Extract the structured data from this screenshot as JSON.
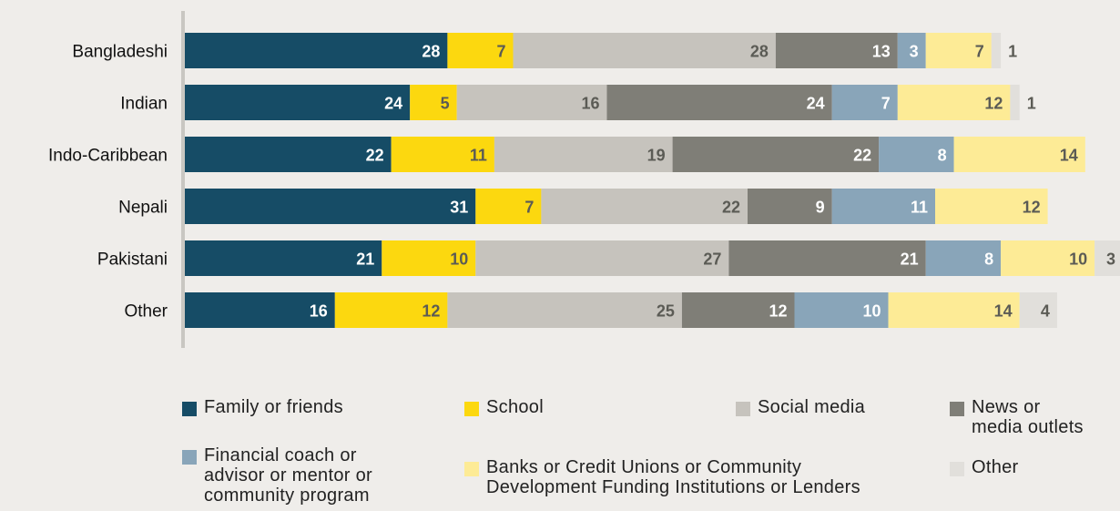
{
  "chart_data": {
    "type": "bar",
    "orientation": "horizontal",
    "stacked": true,
    "categories": [
      "Bangladeshi",
      "Indian",
      "Indo-Caribbean",
      "Nepali",
      "Pakistani",
      "Other"
    ],
    "series": [
      {
        "name": "Family or friends",
        "color": "#164c66",
        "label_color": "#ffffff",
        "values": [
          28,
          24,
          22,
          31,
          21,
          16
        ]
      },
      {
        "name": "School",
        "color": "#fcd80f",
        "label_color": "#5b5b55",
        "values": [
          7,
          5,
          11,
          7,
          10,
          12
        ]
      },
      {
        "name": "Social media",
        "color": "#c6c3bd",
        "label_color": "#5b5b55",
        "values": [
          28,
          16,
          19,
          22,
          27,
          25
        ]
      },
      {
        "name": "News or media outlets",
        "color": "#7f7e77",
        "label_color": "#ffffff",
        "values": [
          13,
          24,
          22,
          9,
          21,
          12
        ]
      },
      {
        "name": "Financial coach or advisor or mentor or community program",
        "color": "#89a5b9",
        "label_color": "#ffffff",
        "values": [
          3,
          7,
          8,
          11,
          8,
          10
        ]
      },
      {
        "name": "Banks or Credit Unions or Community Development Funding Institutions or Lenders",
        "color": "#fdeb96",
        "label_color": "#5b5b55",
        "values": [
          7,
          12,
          14,
          12,
          10,
          14
        ]
      },
      {
        "name": "Other",
        "color": "#e1dfdb",
        "label_color": "#5b5b55",
        "values": [
          1,
          1,
          0,
          0,
          3,
          4
        ]
      }
    ],
    "grid": false,
    "legend_position": "bottom"
  },
  "legend": {
    "items": [
      {
        "lines": [
          "Family or friends"
        ],
        "color": "#164c66"
      },
      {
        "lines": [
          "School"
        ],
        "color": "#fcd80f"
      },
      {
        "lines": [
          "Social media"
        ],
        "color": "#c6c3bd"
      },
      {
        "lines": [
          "News or",
          "media outlets"
        ],
        "color": "#7f7e77"
      },
      {
        "lines": [
          "Financial coach or",
          "advisor or mentor or",
          "community program"
        ],
        "color": "#89a5b9"
      },
      {
        "lines": [
          "Banks or Credit Unions or Community",
          "Development Funding Institutions or Lenders"
        ],
        "color": "#fdeb96"
      },
      {
        "lines": [
          "Other"
        ],
        "color": "#e1dfdb"
      }
    ]
  }
}
